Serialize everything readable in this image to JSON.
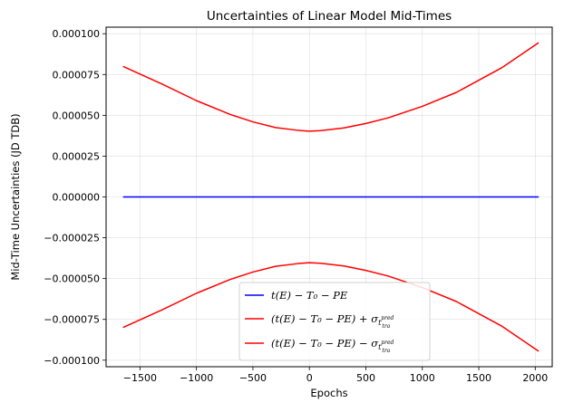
{
  "chart_data": {
    "type": "line",
    "title": "Uncertainties of Linear Model Mid-Times",
    "xlabel": "Epochs",
    "ylabel": "Mid-Time Uncertainties (JD TDB)",
    "xlim": [
      -1800,
      2150
    ],
    "ylim": [
      -0.000104,
      0.000104
    ],
    "xticks": [
      -1500,
      -1000,
      -500,
      0,
      500,
      1000,
      1500,
      2000
    ],
    "xtick_labels": [
      "−1500",
      "−1000",
      "−500",
      "0",
      "500",
      "1000",
      "1500",
      "2000"
    ],
    "yticks": [
      -0.0001,
      -7.5e-05,
      -5e-05,
      -2.5e-05,
      0,
      2.5e-05,
      5e-05,
      7.5e-05,
      0.0001
    ],
    "ytick_labels": [
      "−0.000100",
      "−0.000075",
      "−0.000050",
      "−0.000025",
      "0.000000",
      "0.000025",
      "0.000050",
      "0.000075",
      "0.000100"
    ],
    "grid": true,
    "legend_position": "lower-center",
    "x": [
      -1650,
      -1300,
      -1000,
      -700,
      -500,
      -300,
      -100,
      0,
      100,
      300,
      500,
      700,
      1000,
      1300,
      1700,
      2030
    ],
    "series": [
      {
        "name": "t(E) − T₀ − PE",
        "color": "#0000ff",
        "values": [
          0,
          0,
          0,
          0,
          0,
          0,
          0,
          0,
          0,
          0,
          0,
          0,
          0,
          0,
          0,
          0
        ]
      },
      {
        "name": "(t(E) − T₀ − PE) + σ",
        "color": "#ff0000",
        "values": [
          8e-05,
          6.9e-05,
          5.9e-05,
          5.05e-05,
          4.6e-05,
          4.25e-05,
          4.08e-05,
          4.03e-05,
          4.06e-05,
          4.22e-05,
          4.5e-05,
          4.85e-05,
          5.55e-05,
          6.4e-05,
          7.9e-05,
          9.45e-05
        ]
      },
      {
        "name": "(t(E) − T₀ − PE) − σ",
        "color": "#ff0000",
        "values": [
          -8e-05,
          -6.9e-05,
          -5.9e-05,
          -5.05e-05,
          -4.6e-05,
          -4.25e-05,
          -4.08e-05,
          -4.03e-05,
          -4.06e-05,
          -4.22e-05,
          -4.5e-05,
          -4.85e-05,
          -5.55e-05,
          -6.4e-05,
          -7.9e-05,
          -9.45e-05
        ]
      }
    ],
    "legend": {
      "entries": [
        {
          "prefix": "t(E) − T₀ − PE",
          "sub": "",
          "sup": ""
        },
        {
          "prefix": "(t(E) − T₀ − PE) + σ",
          "sub": "t",
          "sup": "pred",
          "subsub": "tra"
        },
        {
          "prefix": "(t(E) − T₀ − PE) − σ",
          "sub": "t",
          "sup": "pred",
          "subsub": "tra"
        }
      ]
    }
  }
}
